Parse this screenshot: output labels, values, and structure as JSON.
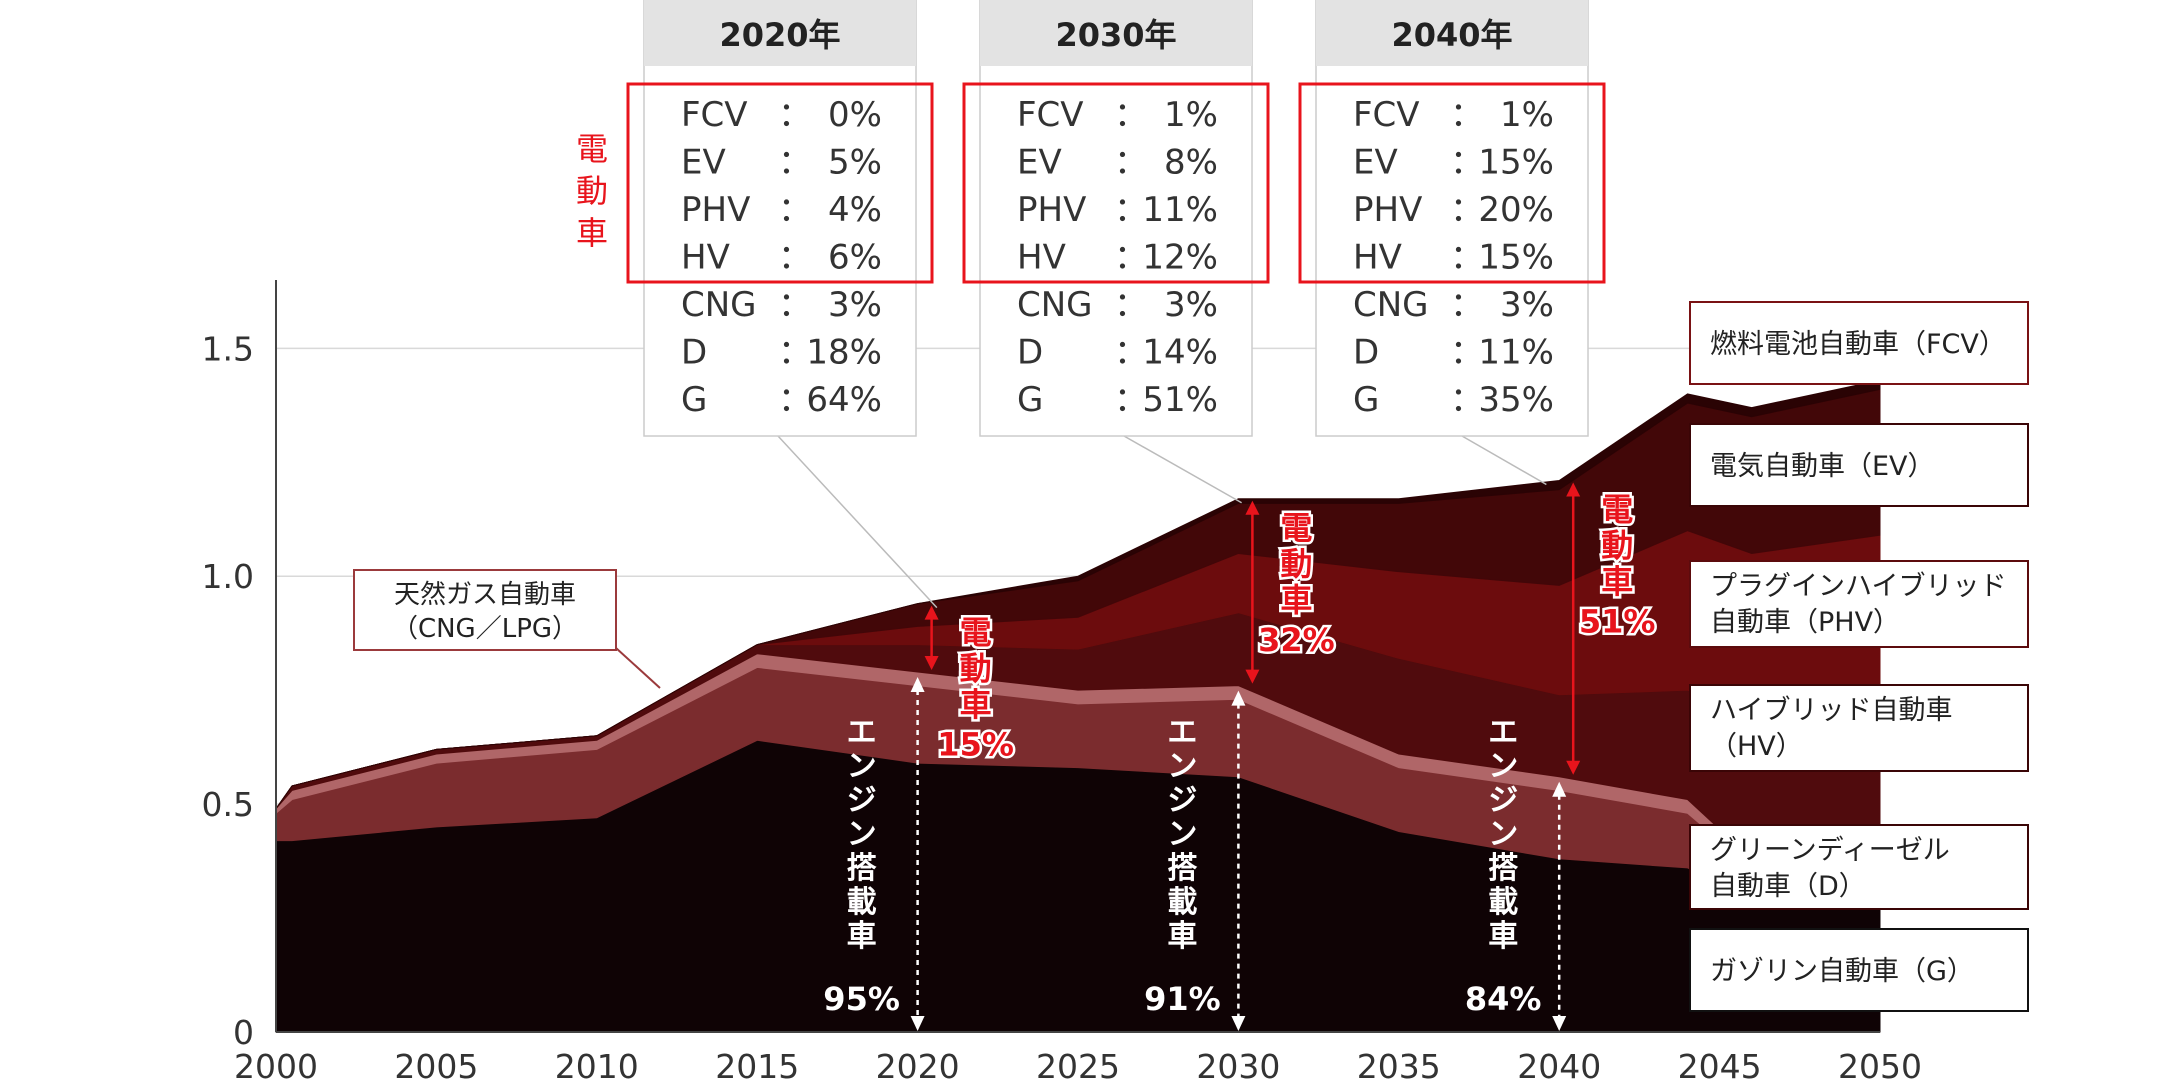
{
  "chart_data": {
    "type": "area",
    "title": "",
    "xlabel": "",
    "ylabel": "",
    "xlim": [
      2000,
      2050
    ],
    "ylim": [
      0,
      1.65
    ],
    "x_ticks": [
      "2000",
      "2005",
      "2010",
      "2015",
      "2020",
      "2025",
      "2030",
      "2035",
      "2040",
      "2045",
      "2050"
    ],
    "y_ticks": [
      "0",
      "0.5",
      "1.0",
      "1.5"
    ],
    "grid": true,
    "x": [
      2000,
      2000.5,
      2005,
      2010,
      2015,
      2020,
      2025,
      2030,
      2035,
      2040,
      2044,
      2046,
      2050
    ],
    "series": [
      {
        "name": "ガゾリン自動車（G）",
        "color": "#0f0305",
        "values": [
          0.42,
          0.42,
          0.45,
          0.47,
          0.64,
          0.59,
          0.58,
          0.56,
          0.44,
          0.38,
          0.36,
          0.3,
          0.28
        ]
      },
      {
        "name": "グリーンディーゼル自動車（D）",
        "color": "#7b2c2e",
        "values": [
          0.06,
          0.09,
          0.14,
          0.15,
          0.16,
          0.17,
          0.14,
          0.17,
          0.14,
          0.15,
          0.12,
          0.06,
          0.02
        ]
      },
      {
        "name": "天然ガス自動車（CNG／LPG）",
        "color": "#b06668",
        "values": [
          0.01,
          0.02,
          0.02,
          0.02,
          0.03,
          0.03,
          0.03,
          0.03,
          0.03,
          0.03,
          0.03,
          0.02,
          0.01
        ]
      },
      {
        "name": "ハイブリッド自動車（HV）",
        "color": "#500b0d",
        "values": [
          0.0,
          0.01,
          0.01,
          0.01,
          0.02,
          0.06,
          0.09,
          0.16,
          0.21,
          0.18,
          0.24,
          0.32,
          0.42
        ]
      },
      {
        "name": "プラグインハイブリッド自動車（PHV）",
        "color": "#6c0c0d",
        "values": [
          0.0,
          0.0,
          0.0,
          0.0,
          0.0,
          0.04,
          0.07,
          0.13,
          0.19,
          0.24,
          0.35,
          0.35,
          0.36
        ]
      },
      {
        "name": "電気自動車（EV）",
        "color": "#420708",
        "values": [
          0.0,
          0.0,
          0.0,
          0.0,
          0.0,
          0.05,
          0.08,
          0.11,
          0.15,
          0.21,
          0.28,
          0.3,
          0.32
        ]
      },
      {
        "name": "燃料電池自動車（FCV）",
        "color": "#2a0304",
        "values": [
          0.0,
          0.0,
          0.0,
          0.0,
          0.0,
          0.0,
          0.01,
          0.01,
          0.01,
          0.02,
          0.02,
          0.02,
          0.02
        ]
      }
    ],
    "annotations": [
      {
        "year": 2020,
        "electric": "15%",
        "engine": "95%"
      },
      {
        "year": 2030,
        "electric": "32%",
        "engine": "91%"
      },
      {
        "year": 2040,
        "electric": "51%",
        "engine": "84%"
      }
    ]
  },
  "labels": {
    "electric_vertical": "電動車",
    "engine_vertical": "エンジン搭載車",
    "side_red_label": "電動車",
    "cng_callout": [
      "天然ガス自動車",
      "（CNG／LPG）"
    ]
  },
  "breakdown": [
    {
      "title": "2020年",
      "rows": [
        [
          "FCV",
          "0%"
        ],
        [
          "EV",
          "5%"
        ],
        [
          "PHV",
          "4%"
        ],
        [
          "HV",
          "6%"
        ],
        [
          "CNG",
          "3%"
        ],
        [
          "D",
          "18%"
        ],
        [
          "G",
          "64%"
        ]
      ]
    },
    {
      "title": "2030年",
      "rows": [
        [
          "FCV",
          "1%"
        ],
        [
          "EV",
          "8%"
        ],
        [
          "PHV",
          "11%"
        ],
        [
          "HV",
          "12%"
        ],
        [
          "CNG",
          "3%"
        ],
        [
          "D",
          "14%"
        ],
        [
          "G",
          "51%"
        ]
      ]
    },
    {
      "title": "2040年",
      "rows": [
        [
          "FCV",
          "1%"
        ],
        [
          "EV",
          "15%"
        ],
        [
          "PHV",
          "20%"
        ],
        [
          "HV",
          "15%"
        ],
        [
          "CNG",
          "3%"
        ],
        [
          "D",
          "11%"
        ],
        [
          "G",
          "35%"
        ]
      ]
    }
  ],
  "legend": [
    [
      "燃料電池自動車（FCV）"
    ],
    [
      "電気自動車（EV）"
    ],
    [
      "プラグインハイブリッド",
      "自動車（PHV）"
    ],
    [
      "ハイブリッド自動車",
      "（HV）"
    ],
    [
      "グリーンディーゼル",
      "自動車（D）"
    ],
    [
      "ガゾリン自動車（G）"
    ]
  ],
  "colors": {
    "accent_red": "#e8141c",
    "grid": "#d9d9d9",
    "box_header": "#e3e3e3"
  }
}
